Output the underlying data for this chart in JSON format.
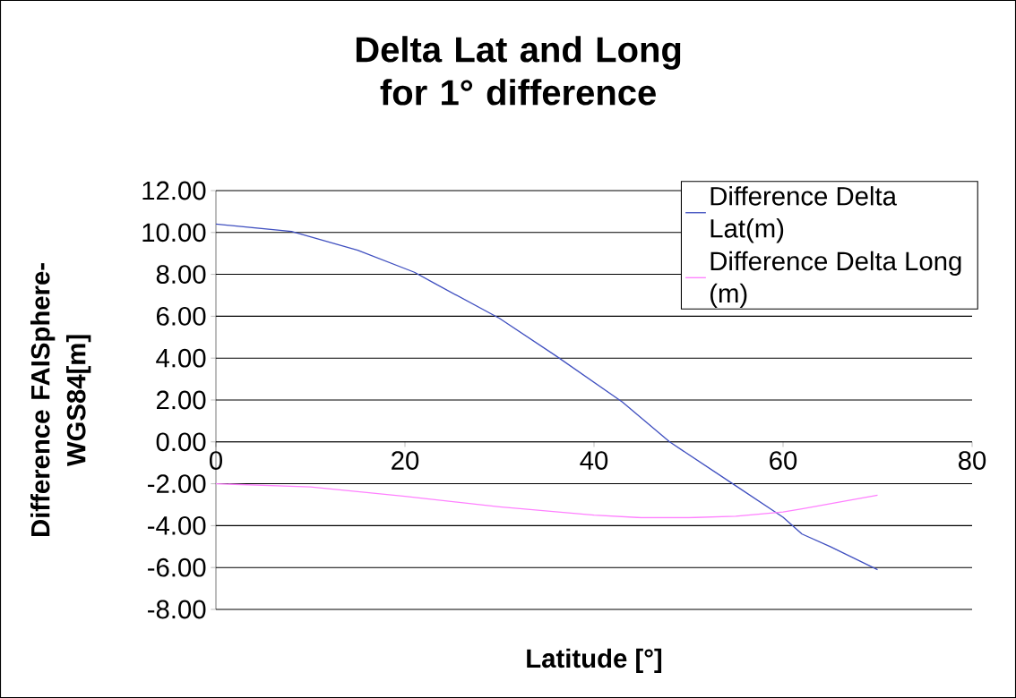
{
  "chart_data": {
    "type": "line",
    "title": "Delta Lat and Long for 1° difference",
    "xlabel": "Latitude [°]",
    "ylabel": "Difference FAISphere-WGS84[m]",
    "xlim": [
      0,
      80
    ],
    "xticks": [
      0,
      20,
      40,
      60,
      80
    ],
    "ylim": [
      -8,
      12
    ],
    "yticks": [
      {
        "value": -8,
        "label": "-8.00"
      },
      {
        "value": -6,
        "label": "-6.00"
      },
      {
        "value": -4,
        "label": "-4.00"
      },
      {
        "value": -2,
        "label": "-2.00"
      },
      {
        "value": 0,
        "label": "0.00"
      },
      {
        "value": 2,
        "label": "2.00"
      },
      {
        "value": 4,
        "label": "4.00"
      },
      {
        "value": 6,
        "label": "6.00"
      },
      {
        "value": 8,
        "label": "8.00"
      },
      {
        "value": 10,
        "label": "10.00"
      },
      {
        "value": 12,
        "label": "12.00"
      }
    ],
    "grid": "y",
    "legend": "top right",
    "series": [
      {
        "name": "Difference Delta Lat(m)",
        "color": "#4050c0",
        "x": [
          0,
          8,
          15,
          21,
          23,
          30,
          36,
          43,
          48,
          55,
          60,
          62,
          65,
          70
        ],
        "values": [
          10.4,
          10.05,
          9.15,
          8.1,
          7.6,
          5.9,
          4.1,
          1.9,
          0,
          -2.1,
          -3.6,
          -4.4,
          -5.0,
          -6.1
        ]
      },
      {
        "name": "Difference Delta Long (m)",
        "color": "#ff80ff",
        "x": [
          0,
          10,
          20,
          30,
          40,
          45,
          50,
          55,
          60,
          62,
          65,
          70
        ],
        "values": [
          -2.0,
          -2.15,
          -2.6,
          -3.1,
          -3.5,
          -3.62,
          -3.62,
          -3.55,
          -3.35,
          -3.2,
          -2.95,
          -2.55
        ]
      }
    ]
  }
}
